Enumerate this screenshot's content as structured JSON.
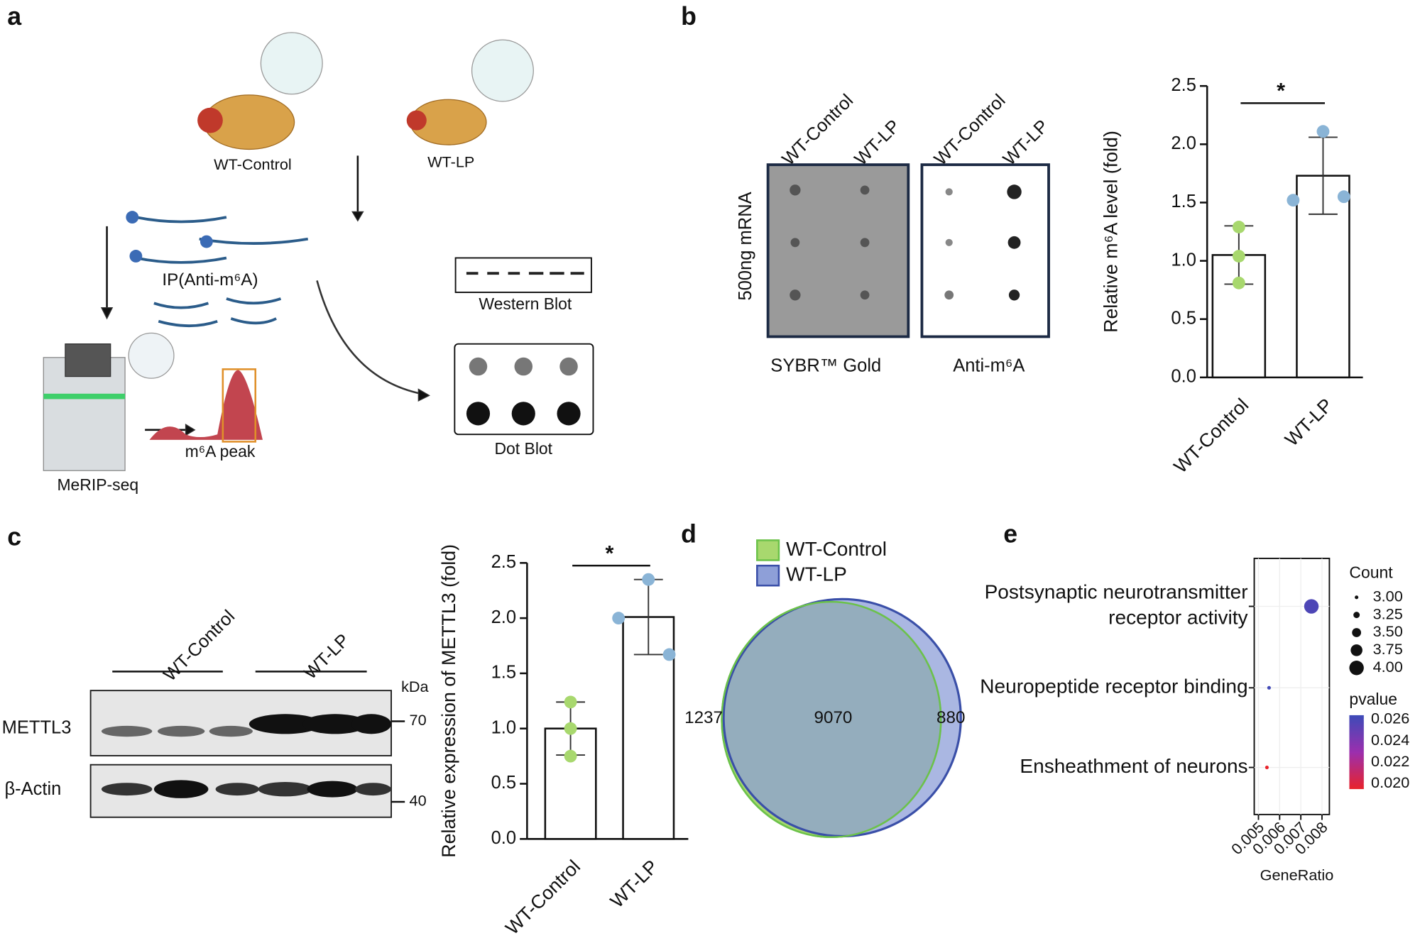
{
  "panel_labels": [
    "a",
    "b",
    "c",
    "d",
    "e"
  ],
  "diagram": {
    "fly_control": "WT-Control",
    "fly_lp": "WT-LP",
    "ip": "IP(Anti-m⁶A)",
    "western": "Western Blot",
    "dot": "Dot Blot",
    "peak": "m⁶A peak",
    "seq": "MeRIP-seq"
  },
  "blot_b": {
    "lanes": [
      "WT-Control",
      "WT-LP",
      "WT-Control",
      "WT-LP"
    ],
    "side_label": "500ng  mRNA",
    "captions": [
      "SYBR™ Gold",
      "Anti-m⁶A"
    ]
  },
  "blot_c": {
    "groups": [
      "WT-Control",
      "WT-LP"
    ],
    "rows": [
      "METTL3",
      "β-Actin"
    ],
    "unit": "kDa",
    "markers": [
      70,
      40
    ]
  },
  "chart_data": [
    {
      "type": "bar",
      "categories": [
        "WT-Control",
        "WT-LP"
      ],
      "values": [
        1.05,
        1.73
      ],
      "errors": [
        0.25,
        0.33
      ],
      "points": [
        [
          1.29,
          1.04,
          0.81
        ],
        [
          2.11,
          1.52,
          1.55
        ]
      ],
      "colors": [
        "#a8d86e",
        "#8ab4d6"
      ],
      "ylabel": "Relative m⁶A level (fold)",
      "annotation": "*",
      "ylim": [
        0,
        2.5
      ],
      "yticks": [
        {
          "value": 0,
          "label": "0.0"
        },
        0.5,
        {
          "value": 1,
          "label": "1.0"
        },
        1.5,
        {
          "value": 2,
          "label": "2.0"
        },
        2.5
      ]
    },
    {
      "type": "bar",
      "categories": [
        "WT-Control",
        "WT-LP"
      ],
      "values": [
        1.0,
        2.01
      ],
      "errors": [
        0.24,
        0.34
      ],
      "points": [
        [
          1.24,
          1.0,
          0.75
        ],
        [
          2.35,
          2.0,
          1.67
        ]
      ],
      "colors": [
        "#a8d86e",
        "#8ab4d6"
      ],
      "ylabel": "Relative expression of METTL3 (fold)",
      "annotation": "*",
      "ylim": [
        0,
        2.5
      ],
      "yticks": [
        {
          "value": 0,
          "label": "0.0"
        },
        0.5,
        {
          "value": 1,
          "label": "1.0"
        },
        1.5,
        {
          "value": 2,
          "label": "2.0"
        },
        2.5
      ]
    },
    {
      "type": "venn",
      "series": [
        {
          "name": "WT-Control",
          "color": "#a8d86e"
        },
        {
          "name": "WT-LP",
          "color": "#8e9fd8"
        }
      ],
      "values": [
        1237,
        9070,
        880
      ]
    },
    {
      "type": "dot",
      "categories": [
        "Postsynaptic neurotransmitter receptor activity",
        "Neuropeptide receptor binding",
        "Ensheathment of neurons"
      ],
      "x": [
        0.0075,
        0.0055,
        0.0054
      ],
      "sizes": [
        4,
        3,
        3
      ],
      "pvalues": [
        0.0258,
        0.0262,
        0.0195
      ],
      "xlabel": "GeneRatio",
      "xlim": [
        0.0048,
        0.00835
      ],
      "xticks": [
        0.005,
        0.006,
        0.007,
        0.008
      ],
      "size_title": "Count",
      "size_ticks": [
        {
          "value": 3,
          "label": "3.00"
        },
        3.25,
        {
          "value": 3.5,
          "label": "3.50"
        },
        3.75,
        {
          "value": 4,
          "label": "4.00"
        }
      ],
      "color_title": "pvalue",
      "color_ticks": [
        0.026,
        0.024,
        0.022,
        {
          "value": 0.02,
          "label": "0.020"
        }
      ],
      "color_range": [
        0.0195,
        0.0264
      ],
      "colors": [
        "#e8232b",
        "#9b2fae",
        "#3d4bb8"
      ],
      "grid": true
    }
  ]
}
